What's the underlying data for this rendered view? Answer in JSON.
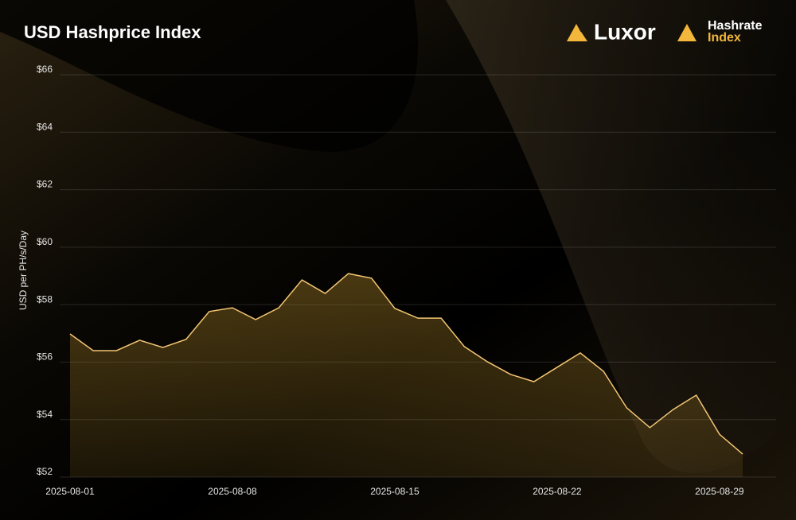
{
  "chart_data": {
    "type": "line",
    "title": "USD Hashprice Index",
    "y_label": "USD per PH/s/Day",
    "logos": [
      "Luxor",
      "Hashrate",
      "Index"
    ],
    "x": [
      "2025-08-01",
      "2025-08-02",
      "2025-08-03",
      "2025-08-04",
      "2025-08-05",
      "2025-08-06",
      "2025-08-07",
      "2025-08-08",
      "2025-08-09",
      "2025-08-10",
      "2025-08-11",
      "2025-08-12",
      "2025-08-13",
      "2025-08-14",
      "2025-08-15",
      "2025-08-16",
      "2025-08-17",
      "2025-08-18",
      "2025-08-19",
      "2025-08-20",
      "2025-08-21",
      "2025-08-22",
      "2025-08-23",
      "2025-08-24",
      "2025-08-25",
      "2025-08-26",
      "2025-08-27",
      "2025-08-28",
      "2025-08-29",
      "2025-08-30"
    ],
    "series": [
      {
        "color": "#f3c574",
        "values": [
          56.98,
          56.4,
          56.4,
          56.76,
          56.51,
          56.79,
          57.76,
          57.89,
          57.48,
          57.89,
          58.86,
          58.39,
          59.08,
          58.92,
          57.87,
          57.53,
          57.53,
          56.54,
          56.01,
          55.57,
          55.32,
          55.82,
          56.32,
          55.68,
          54.41,
          53.72,
          54.35,
          54.85,
          53.49,
          52.8
        ]
      }
    ],
    "ylim": [
      52,
      66
    ],
    "yticks": [
      {
        "value": 52,
        "label": "$52"
      },
      {
        "value": 54,
        "label": "$54"
      },
      {
        "value": 56,
        "label": "$56"
      },
      {
        "value": 58,
        "label": "$58"
      },
      {
        "value": 60,
        "label": "$60"
      },
      {
        "value": 62,
        "label": "$62"
      },
      {
        "value": 64,
        "label": "$64"
      },
      {
        "value": 66,
        "label": "$66"
      }
    ],
    "xticks": [
      "2025-08-01",
      "2025-08-08",
      "2025-08-15",
      "2025-08-22",
      "2025-08-29"
    ],
    "grid": true
  }
}
